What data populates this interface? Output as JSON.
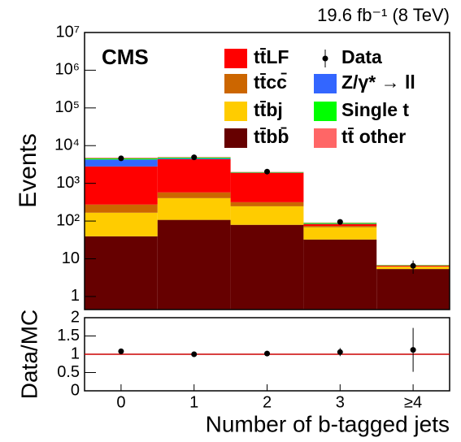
{
  "chart_data": {
    "type": "bar",
    "stacked": true,
    "log_scale": true,
    "title": "19.6 fb⁻¹ (8 TeV)",
    "annotation": "CMS",
    "ylabel": "Events",
    "xlabel": "Number of b-tagged jets",
    "categories": [
      "0",
      "1",
      "2",
      "3",
      "≥4"
    ],
    "series": [
      {
        "name": "tt̄bb̄",
        "color": "#660000",
        "values": [
          39,
          107,
          79,
          32,
          4.9
        ]
      },
      {
        "name": "tt̄bj",
        "color": "#ffcc00",
        "values": [
          127,
          298,
          167,
          36,
          0.8
        ]
      },
      {
        "name": "tt̄cc̄",
        "color": "#cc6600",
        "values": [
          107,
          170,
          70,
          6,
          0.1
        ]
      },
      {
        "name": "tt̄LF",
        "color": "#ff0000",
        "values": [
          2530,
          3800,
          1590,
          9,
          0.3
        ]
      },
      {
        "name": "Z/γ* → ll",
        "color": "#3366ff",
        "values": [
          1500,
          200,
          20,
          1,
          0.05
        ]
      },
      {
        "name": "Single t",
        "color": "#00ff00",
        "values": [
          300,
          250,
          60,
          5,
          0.2
        ]
      },
      {
        "name": "tt̄ other",
        "color": "#ff6666",
        "values": [
          200,
          150,
          30,
          2,
          0.1
        ]
      }
    ],
    "data": {
      "name": "Data",
      "color": "#000000",
      "values": [
        4600,
        4900,
        2050,
        95,
        6.5
      ],
      "errors": [
        70,
        70,
        45,
        10,
        2.5
      ]
    },
    "ylim": [
      0.45,
      10000000
    ],
    "yticks": [
      1,
      10,
      {
        "value": 100,
        "label": "10²"
      },
      {
        "value": 1000,
        "label": "10³"
      },
      {
        "value": 10000,
        "label": "10⁴"
      },
      {
        "value": 100000,
        "label": "10⁵"
      },
      {
        "value": 1000000,
        "label": "10⁶"
      },
      {
        "value": 10000000,
        "label": "10⁷"
      }
    ],
    "ratio": {
      "type": "scatter",
      "ylabel": "Data/MC",
      "values": [
        1.08,
        1.0,
        1.02,
        1.06,
        1.12
      ],
      "errors": [
        0.02,
        0.02,
        0.03,
        0.11,
        0.6
      ],
      "ylim": [
        0,
        2
      ],
      "yticks": [
        0,
        0.5,
        1,
        1.5,
        2
      ],
      "reference": 1,
      "reference_color": "#cc0000"
    }
  }
}
